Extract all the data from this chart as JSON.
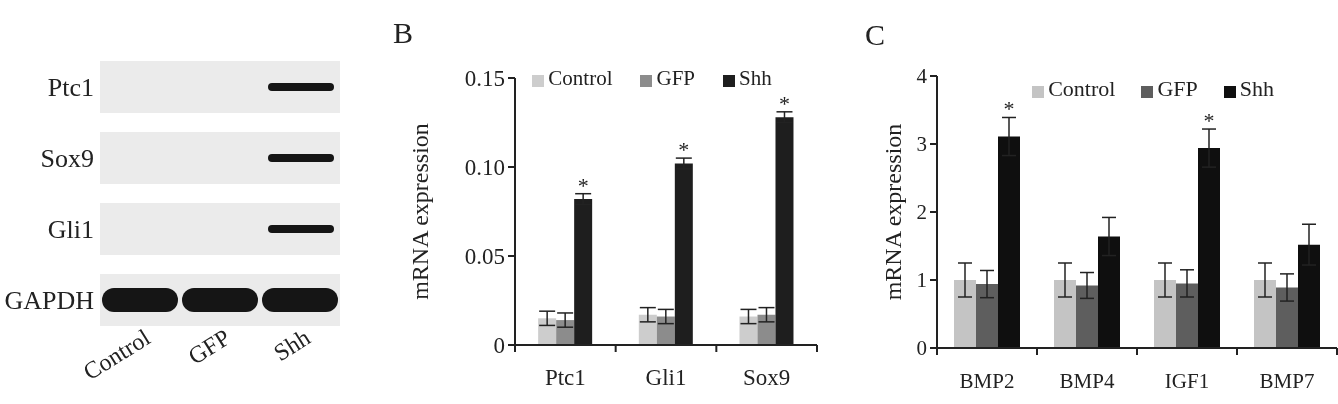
{
  "chart_data": [
    {
      "type": "other",
      "categories": [
        "Control",
        "GFP",
        "Shh"
      ],
      "y_categories": [
        "Ptc1",
        "Sox9",
        "Gli1",
        "GAPDH"
      ]
    },
    {
      "type": "bar",
      "title": "B",
      "ylabel": "mRNA expression",
      "categories": [
        "Ptc1",
        "Gli1",
        "Sox9"
      ],
      "series": [
        {
          "name": "Control",
          "color": "#cdcdcd",
          "values": [
            0.015,
            0.017,
            0.016
          ],
          "errors": [
            0.004,
            0.004,
            0.004
          ]
        },
        {
          "name": "GFP",
          "color": "#8c8c8c",
          "values": [
            0.014,
            0.016,
            0.017
          ],
          "errors": [
            0.004,
            0.004,
            0.004
          ]
        },
        {
          "name": "Shh",
          "color": "#1e1e1e",
          "values": [
            0.082,
            0.102,
            0.128
          ],
          "errors": [
            0.003,
            0.003,
            0.003
          ],
          "value_labels": [
            "*",
            "*",
            "*"
          ]
        }
      ],
      "ylim": [
        0,
        0.15
      ],
      "yticks": [
        0,
        0.05,
        {
          "value": 0.1,
          "label": "0.10"
        },
        0.15
      ],
      "legend": "top"
    },
    {
      "type": "bar",
      "title": "C",
      "ylabel": "mRNA expression",
      "categories": [
        "BMP2",
        "BMP4",
        "IGF1",
        "BMP7"
      ],
      "series": [
        {
          "name": "Control",
          "color": "#c4c4c4",
          "values": [
            1.0,
            1.0,
            1.0,
            1.0
          ],
          "errors": [
            0.25,
            0.25,
            0.25,
            0.25
          ]
        },
        {
          "name": "GFP",
          "color": "#5e5e5e",
          "values": [
            0.94,
            0.92,
            0.95,
            0.89
          ],
          "errors": [
            0.2,
            0.19,
            0.2,
            0.2
          ]
        },
        {
          "name": "Shh",
          "color": "#0f0f0f",
          "values": [
            3.11,
            1.64,
            2.94,
            1.52
          ],
          "errors": [
            0.28,
            0.28,
            0.28,
            0.3
          ],
          "value_labels": [
            "*",
            null,
            "*",
            null
          ]
        }
      ],
      "ylim": [
        0,
        4
      ],
      "yticks": [
        0,
        1,
        2,
        3,
        4
      ],
      "legend": "top right"
    }
  ]
}
